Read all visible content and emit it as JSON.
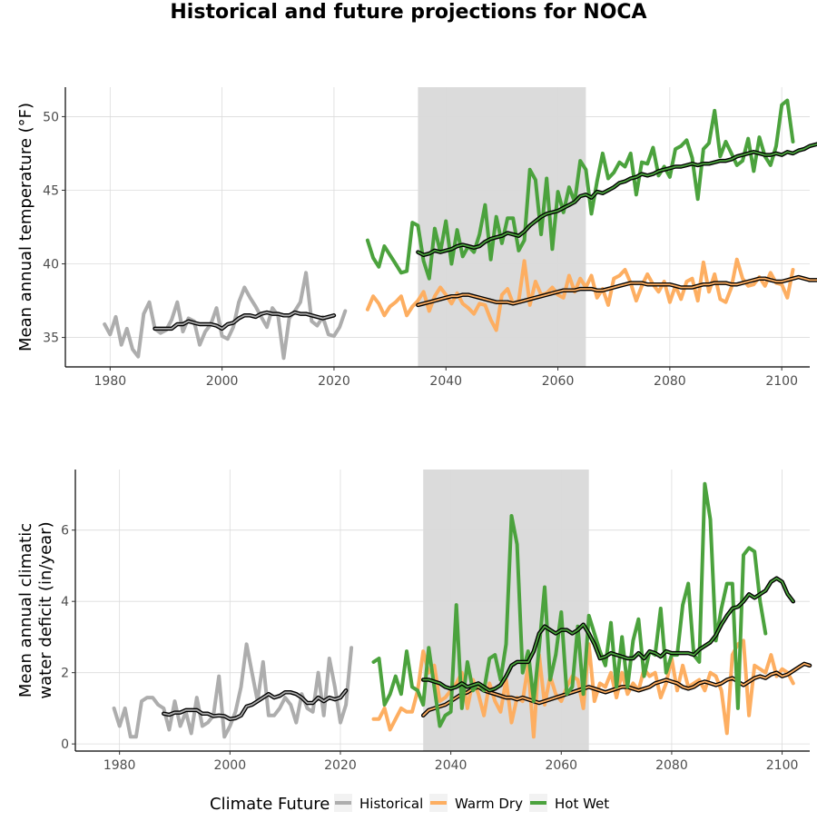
{
  "chart_data": {
    "title": "Historical and future projections for NOCA",
    "legend": {
      "title": "Climate Future",
      "placement": "bottom",
      "entries": [
        {
          "name": "Historical",
          "color": "#adadad"
        },
        {
          "name": "Warm Dry",
          "color": "#fdae61"
        },
        {
          "name": "Hot Wet",
          "color": "#4ba23d"
        }
      ]
    },
    "smooth_color": "#000000",
    "panels": [
      {
        "type": "line",
        "ylabel": [
          "Mean annual temperature (°F)"
        ],
        "xlim": [
          1972,
          2105
        ],
        "ylim": [
          33,
          52
        ],
        "xticks": [
          1980,
          2000,
          2020,
          2040,
          2060,
          2080,
          2100
        ],
        "yticks": [
          35,
          40,
          45,
          50
        ],
        "grid": true,
        "shaded_period": [
          2035,
          2065
        ],
        "series": [
          {
            "name": "Historical",
            "color": "#adadad",
            "x_start": 1979,
            "values": [
              35.9,
              35.2,
              36.4,
              34.5,
              35.6,
              34.2,
              33.7,
              36.6,
              37.4,
              35.6,
              35.3,
              35.5,
              36.2,
              37.4,
              35.4,
              36.3,
              36.1,
              34.5,
              35.4,
              35.9,
              37.0,
              35.1,
              34.9,
              35.7,
              37.4,
              38.4,
              37.7,
              37.1,
              36.4,
              35.7,
              37.0,
              36.5,
              33.6,
              36.3,
              36.8,
              37.4,
              39.4,
              36.1,
              35.8,
              36.4,
              35.2,
              35.1,
              35.7,
              36.8
            ]
          },
          {
            "name": "Historical",
            "color": "#000000",
            "smooth": true,
            "x_start": 1988,
            "values": [
              35.6,
              35.6,
              35.6,
              35.6,
              35.9,
              35.9,
              36.1,
              36.0,
              35.9,
              35.9,
              35.9,
              35.8,
              35.6,
              35.9,
              36.0,
              36.3,
              36.5,
              36.5,
              36.4,
              36.6,
              36.7,
              36.6,
              36.6,
              36.5,
              36.5,
              36.7,
              36.6,
              36.6,
              36.5,
              36.4,
              36.3,
              36.4,
              36.5
            ]
          },
          {
            "name": "Warm Dry",
            "color": "#fdae61",
            "x_start": 2026,
            "values": [
              36.9,
              37.8,
              37.3,
              36.5,
              37.1,
              37.4,
              37.8,
              36.5,
              37.1,
              37.5,
              38.1,
              36.8,
              37.8,
              38.4,
              37.9,
              37.3,
              38.0,
              37.3,
              37.0,
              36.6,
              37.3,
              37.2,
              36.2,
              35.5,
              37.9,
              38.3,
              37.3,
              37.5,
              40.2,
              37.2,
              38.8,
              37.9,
              38.0,
              38.4,
              37.9,
              37.7,
              39.2,
              38.1,
              39.0,
              38.4,
              39.2,
              37.7,
              38.3,
              37.2,
              39.0,
              39.2,
              39.6,
              38.7,
              37.5,
              38.5,
              39.3,
              38.6,
              38.1,
              38.8,
              37.4,
              38.5,
              37.6,
              38.8,
              39.0,
              37.5,
              40.1,
              38.1,
              39.3,
              37.6,
              37.4,
              38.4,
              40.3,
              39.0,
              38.5,
              38.6,
              39.1,
              38.5,
              39.4,
              38.7,
              38.6,
              37.7,
              39.6
            ]
          },
          {
            "name": "Warm Dry",
            "color": "#000000",
            "smooth": true,
            "x_start": 2035,
            "values": [
              37.2,
              37.3,
              37.4,
              37.5,
              37.6,
              37.7,
              37.8,
              37.8,
              37.9,
              37.9,
              37.8,
              37.7,
              37.6,
              37.5,
              37.4,
              37.4,
              37.4,
              37.3,
              37.4,
              37.5,
              37.6,
              37.7,
              37.8,
              37.9,
              38.0,
              38.1,
              38.2,
              38.2,
              38.2,
              38.3,
              38.3,
              38.3,
              38.2,
              38.2,
              38.3,
              38.4,
              38.5,
              38.6,
              38.7,
              38.7,
              38.7,
              38.6,
              38.6,
              38.6,
              38.6,
              38.6,
              38.5,
              38.4,
              38.4,
              38.4,
              38.5,
              38.6,
              38.6,
              38.7,
              38.7,
              38.7,
              38.6,
              38.6,
              38.7,
              38.8,
              38.9,
              39.0,
              39.0,
              38.9,
              38.8,
              38.8,
              38.9,
              39.0,
              39.1,
              39.0,
              38.9,
              38.9,
              38.9,
              39.0,
              39.1,
              39.0,
              38.9
            ]
          },
          {
            "name": "Hot Wet",
            "color": "#4ba23d",
            "x_start": 2026,
            "values": [
              41.6,
              40.4,
              39.8,
              41.2,
              40.6,
              40.0,
              39.4,
              39.5,
              42.8,
              42.6,
              40.2,
              39.0,
              42.4,
              40.8,
              42.9,
              40.0,
              42.3,
              40.5,
              41.2,
              40.8,
              42.0,
              44.0,
              40.3,
              43.2,
              41.4,
              43.1,
              43.1,
              40.9,
              41.6,
              46.4,
              45.7,
              42.0,
              45.8,
              41.0,
              44.9,
              43.5,
              45.2,
              44.2,
              47.0,
              46.4,
              43.4,
              45.6,
              47.5,
              45.8,
              46.2,
              46.9,
              46.6,
              47.5,
              44.7,
              46.9,
              46.8,
              47.9,
              46.0,
              46.6,
              45.9,
              47.8,
              48.0,
              48.4,
              47.2,
              44.4,
              47.8,
              48.2,
              50.4,
              47.3,
              48.3,
              47.5,
              46.7,
              47.0,
              48.5,
              46.3,
              48.6,
              47.3,
              46.7,
              48.0,
              50.8,
              51.1,
              48.3
            ]
          },
          {
            "name": "Hot Wet",
            "color": "#000000",
            "smooth": true,
            "x_start": 2035,
            "values": [
              40.8,
              40.6,
              40.7,
              40.9,
              40.8,
              40.9,
              41.0,
              41.2,
              41.3,
              41.2,
              41.1,
              41.2,
              41.5,
              41.7,
              41.8,
              41.9,
              42.1,
              42.0,
              41.9,
              42.2,
              42.6,
              42.9,
              43.2,
              43.4,
              43.5,
              43.6,
              43.8,
              44.0,
              44.2,
              44.6,
              44.7,
              44.5,
              44.9,
              44.8,
              45.0,
              45.2,
              45.5,
              45.6,
              45.8,
              45.9,
              46.1,
              46.0,
              46.1,
              46.3,
              46.4,
              46.5,
              46.6,
              46.6,
              46.7,
              46.8,
              46.7,
              46.8,
              46.8,
              46.9,
              47.0,
              47.0,
              47.1,
              47.3,
              47.4,
              47.5,
              47.6,
              47.5,
              47.4,
              47.4,
              47.5,
              47.4,
              47.6,
              47.5,
              47.7,
              47.8,
              48.0,
              48.1,
              48.2
            ]
          }
        ]
      },
      {
        "type": "line",
        "ylabel": [
          "Mean annual climatic",
          "water deficit (in/year)"
        ],
        "xlim": [
          1972,
          2105
        ],
        "ylim": [
          -0.2,
          7.7
        ],
        "xticks": [
          1980,
          2000,
          2020,
          2040,
          2060,
          2080,
          2100
        ],
        "yticks": [
          0,
          2,
          4,
          6
        ],
        "grid": true,
        "shaded_period": [
          2035,
          2065
        ],
        "series": [
          {
            "name": "Historical",
            "color": "#adadad",
            "x_start": 1979,
            "values": [
              1.0,
              0.5,
              1.0,
              0.2,
              0.2,
              1.2,
              1.3,
              1.3,
              1.1,
              1.0,
              0.4,
              1.2,
              0.5,
              0.9,
              0.3,
              1.3,
              0.5,
              0.6,
              0.8,
              1.9,
              0.2,
              0.5,
              0.9,
              1.6,
              2.8,
              2.0,
              1.2,
              2.3,
              0.8,
              0.8,
              1.0,
              1.3,
              1.1,
              0.6,
              1.4,
              1.0,
              0.9,
              2.0,
              0.8,
              2.4,
              1.6,
              0.6,
              1.1,
              2.7
            ]
          },
          {
            "name": "Historical",
            "color": "#000000",
            "smooth": true,
            "x_start": 1988,
            "values": [
              0.85,
              0.82,
              0.88,
              0.88,
              0.95,
              0.95,
              0.95,
              0.85,
              0.85,
              0.78,
              0.8,
              0.78,
              0.7,
              0.72,
              0.8,
              1.05,
              1.1,
              1.2,
              1.3,
              1.4,
              1.3,
              1.35,
              1.45,
              1.45,
              1.4,
              1.3,
              1.15,
              1.15,
              1.3,
              1.2,
              1.3,
              1.25,
              1.3,
              1.5
            ]
          },
          {
            "name": "Warm Dry",
            "color": "#fdae61",
            "x_start": 2026,
            "values": [
              0.7,
              0.7,
              1.0,
              0.4,
              0.7,
              1.0,
              0.9,
              0.9,
              1.5,
              2.6,
              2.0,
              2.2,
              1.2,
              1.3,
              1.5,
              1.7,
              2.0,
              1.0,
              1.8,
              1.4,
              0.8,
              1.7,
              1.2,
              0.9,
              1.8,
              0.6,
              1.3,
              1.2,
              2.2,
              0.2,
              2.5,
              1.1,
              1.9,
              1.4,
              1.2,
              1.6,
              1.9,
              1.8,
              1.0,
              2.8,
              1.2,
              1.7,
              1.6,
              2.0,
              1.3,
              2.0,
              1.4,
              1.7,
              1.5,
              2.1,
              1.9,
              2.0,
              1.3,
              1.7,
              2.4,
              1.5,
              2.2,
              1.6,
              1.7,
              1.8,
              1.5,
              2.0,
              1.9,
              1.5,
              0.3,
              2.5,
              2.8,
              2.9,
              0.8,
              2.2,
              2.1,
              2.0,
              2.5,
              1.9,
              2.1,
              2.0,
              1.7
            ]
          },
          {
            "name": "Warm Dry",
            "color": "#000000",
            "smooth": true,
            "x_start": 2035,
            "values": [
              0.8,
              0.95,
              1.0,
              1.05,
              1.1,
              1.2,
              1.3,
              1.4,
              1.45,
              1.55,
              1.6,
              1.5,
              1.45,
              1.4,
              1.35,
              1.3,
              1.3,
              1.25,
              1.3,
              1.25,
              1.2,
              1.15,
              1.2,
              1.25,
              1.3,
              1.35,
              1.4,
              1.45,
              1.5,
              1.55,
              1.6,
              1.55,
              1.5,
              1.45,
              1.5,
              1.55,
              1.6,
              1.6,
              1.55,
              1.5,
              1.55,
              1.6,
              1.7,
              1.75,
              1.8,
              1.75,
              1.7,
              1.6,
              1.55,
              1.6,
              1.7,
              1.75,
              1.7,
              1.65,
              1.7,
              1.8,
              1.85,
              1.75,
              1.65,
              1.75,
              1.85,
              1.9,
              1.85,
              1.95,
              2.0,
              1.9,
              1.95,
              2.05,
              2.15,
              2.25,
              2.2
            ]
          },
          {
            "name": "Hot Wet",
            "color": "#4ba23d",
            "x_start": 2026,
            "values": [
              2.3,
              2.4,
              1.1,
              1.4,
              1.9,
              1.4,
              2.6,
              1.6,
              1.5,
              1.1,
              2.7,
              1.6,
              0.5,
              0.8,
              0.9,
              3.9,
              1.0,
              2.3,
              1.5,
              1.7,
              1.5,
              2.4,
              2.5,
              1.8,
              2.8,
              6.4,
              5.6,
              2.0,
              2.6,
              1.2,
              2.7,
              4.4,
              1.8,
              2.5,
              3.7,
              1.4,
              1.6,
              3.3,
              1.4,
              3.6,
              3.1,
              2.6,
              2.2,
              3.4,
              1.6,
              3.0,
              1.6,
              2.9,
              3.5,
              1.9,
              2.6,
              2.5,
              3.8,
              2.0,
              2.5,
              2.5,
              3.9,
              4.5,
              2.5,
              2.3,
              7.3,
              6.3,
              2.9,
              3.8,
              4.5,
              4.5,
              1.0,
              5.3,
              5.5,
              5.4,
              4.0,
              3.1
            ]
          },
          {
            "name": "Hot Wet",
            "color": "#000000",
            "smooth": true,
            "x_start": 2035,
            "values": [
              1.8,
              1.8,
              1.75,
              1.7,
              1.6,
              1.55,
              1.6,
              1.7,
              1.6,
              1.65,
              1.7,
              1.6,
              1.5,
              1.55,
              1.65,
              1.9,
              2.2,
              2.3,
              2.3,
              2.3,
              2.6,
              3.1,
              3.3,
              3.2,
              3.1,
              3.2,
              3.2,
              3.1,
              3.2,
              3.35,
              3.1,
              2.8,
              2.4,
              2.45,
              2.55,
              2.5,
              2.45,
              2.4,
              2.4,
              2.55,
              2.4,
              2.6,
              2.55,
              2.45,
              2.6,
              2.55,
              2.55,
              2.55,
              2.55,
              2.5,
              2.65,
              2.75,
              2.85,
              3.05,
              3.35,
              3.6,
              3.8,
              3.85,
              4.0,
              4.2,
              4.1,
              4.2,
              4.3,
              4.55,
              4.65,
              4.55,
              4.2,
              4.0
            ]
          }
        ]
      }
    ]
  }
}
